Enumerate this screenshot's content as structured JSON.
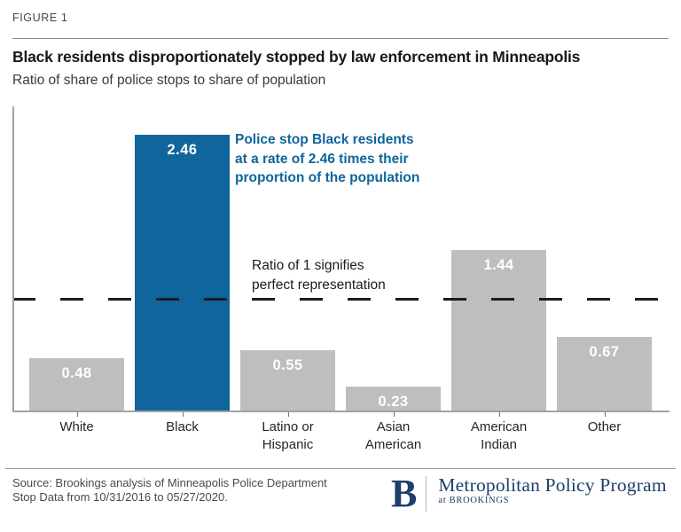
{
  "figure_label": "FIGURE 1",
  "header": {
    "title": "Black residents disproportionately stopped by law enforcement in Minneapolis",
    "subtitle": "Ratio of share of police stops to share of population"
  },
  "chart_data": {
    "type": "bar",
    "categories": [
      "White",
      "Black",
      "Latino or\nHispanic",
      "Asian\nAmerican",
      "American\nIndian",
      "Other"
    ],
    "values": [
      0.48,
      2.46,
      0.55,
      0.23,
      1.44,
      0.67
    ],
    "bar_colors": [
      "#bebebe",
      "#10659c",
      "#bebebe",
      "#bebebe",
      "#bebebe",
      "#bebebe"
    ],
    "value_label_color": "#ffffff",
    "highlight_category": "Black",
    "ylim": [
      0,
      2.72
    ],
    "grid": false,
    "legend": "none",
    "reference_line": {
      "value": 1,
      "style": "dashed",
      "color": "#1c1c1c"
    },
    "annotations": [
      {
        "text": "Police stop Black residents\nat a rate of 2.46 times their\nproportion of the population",
        "color": "#10659c"
      },
      {
        "text": "Ratio of 1 signifies\nperfect representation",
        "color": "#1c1c1c"
      }
    ]
  },
  "footer": {
    "source": "Source: Brookings analysis of Minneapolis Police Department\nStop Data from 10/31/2016 to 05/27/2020.",
    "logo": {
      "monogram": "B",
      "program": "Metropolitan Policy Program",
      "sub": "at BROOKINGS",
      "color": "#1e3e6d"
    }
  },
  "colors": {
    "accent_blue": "#10659c",
    "bar_gray": "#bebebe",
    "axis_gray": "#a2a2a2",
    "navy": "#1e3e6d"
  }
}
